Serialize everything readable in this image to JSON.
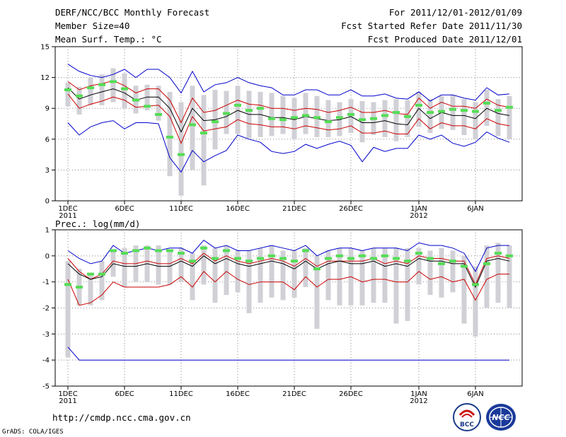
{
  "header": {
    "left": [
      "DERF/NCC/BCC Monthly Forecast",
      "Member Size=40",
      "Mean Surf. Temp.: °C"
    ],
    "right": [
      "For 2011/12/01-2012/01/09",
      "Fcst Started Refer Date 2011/11/30",
      "Fcst Produced Date 2011/12/01"
    ]
  },
  "footer": {
    "url": "http://cmdp.ncc.cma.gov.cn",
    "credit": "GrADS: COLA/IGES",
    "logo_bcc_text": "BCC",
    "logo_ncc_text": "NCC"
  },
  "colors": {
    "max_min": "#0000cc",
    "spread": "#cc0000",
    "mean": "#000000",
    "ensemble_bar": "#d0d0d6",
    "control": "#55dd55",
    "grid": "#888888"
  },
  "chart_data": [
    {
      "type": "line",
      "title": "Mean Surf. Temp.: °C",
      "x": "day index 0 = 2011/12/01 ... 39 = 2012/01/09",
      "xticks": [
        {
          "day": 0,
          "label": [
            "1DEC",
            "2011"
          ]
        },
        {
          "day": 5,
          "label": [
            "6DEC"
          ]
        },
        {
          "day": 10,
          "label": [
            "11DEC"
          ]
        },
        {
          "day": 15,
          "label": [
            "16DEC"
          ]
        },
        {
          "day": 20,
          "label": [
            "21DEC"
          ]
        },
        {
          "day": 25,
          "label": [
            "26DEC"
          ]
        },
        {
          "day": 31,
          "label": [
            "1JAN",
            "2012"
          ]
        },
        {
          "day": 36,
          "label": [
            "6JAN"
          ]
        }
      ],
      "ylim": [
        0,
        15
      ],
      "yticks": [
        0,
        3,
        6,
        9,
        12,
        15
      ],
      "series": [
        {
          "name": "max",
          "values": [
            13.3,
            12.6,
            12.2,
            12.0,
            12.3,
            12.8,
            12.0,
            12.8,
            12.8,
            12.0,
            10.5,
            12.6,
            10.6,
            11.3,
            11.5,
            12.0,
            11.5,
            11.2,
            11.0,
            10.3,
            10.3,
            10.8,
            10.8,
            10.3,
            10.3,
            10.8,
            10.2,
            10.2,
            10.4,
            10.0,
            9.9,
            10.6,
            9.7,
            10.3,
            10.3,
            10.0,
            9.8,
            11.0,
            10.3,
            10.4
          ]
        },
        {
          "name": "spread_upper",
          "values": [
            11.6,
            10.8,
            11.2,
            11.4,
            11.7,
            11.2,
            10.5,
            10.9,
            10.9,
            9.8,
            7.6,
            10.0,
            8.6,
            8.8,
            9.3,
            9.8,
            9.4,
            9.3,
            9.0,
            9.0,
            8.8,
            9.0,
            8.9,
            8.6,
            8.8,
            9.1,
            8.6,
            8.6,
            8.8,
            8.5,
            8.4,
            10.0,
            9.0,
            9.6,
            9.2,
            9.2,
            9.0,
            9.9,
            9.3,
            9.1
          ]
        },
        {
          "name": "mean",
          "values": [
            11.0,
            9.9,
            10.3,
            10.6,
            10.9,
            10.5,
            9.8,
            10.1,
            10.1,
            9.0,
            6.7,
            9.0,
            7.8,
            7.9,
            8.2,
            8.8,
            8.4,
            8.4,
            8.1,
            8.1,
            7.9,
            8.2,
            8.0,
            7.8,
            7.9,
            8.2,
            7.6,
            7.6,
            7.8,
            7.5,
            7.4,
            9.0,
            8.0,
            8.6,
            8.3,
            8.3,
            8.0,
            9.0,
            8.5,
            8.3
          ]
        },
        {
          "name": "spread_lower",
          "values": [
            10.4,
            9.0,
            9.4,
            9.7,
            10.1,
            9.8,
            9.1,
            9.2,
            9.3,
            8.2,
            5.6,
            8.2,
            6.8,
            7.0,
            7.2,
            7.9,
            7.5,
            7.4,
            7.2,
            7.2,
            7.0,
            7.3,
            7.1,
            6.9,
            7.0,
            7.3,
            6.6,
            6.6,
            6.8,
            6.5,
            6.5,
            8.0,
            7.0,
            7.6,
            7.3,
            7.3,
            7.0,
            8.0,
            7.5,
            7.3
          ]
        },
        {
          "name": "min",
          "values": [
            7.6,
            6.4,
            7.2,
            7.6,
            7.8,
            7.0,
            7.6,
            7.6,
            7.5,
            4.2,
            2.8,
            4.9,
            3.8,
            4.4,
            4.9,
            6.4,
            6.0,
            5.7,
            4.8,
            4.6,
            4.8,
            5.5,
            5.1,
            5.5,
            5.8,
            5.4,
            3.8,
            5.2,
            4.8,
            5.1,
            5.1,
            6.4,
            6.0,
            6.4,
            5.6,
            5.3,
            5.7,
            6.7,
            6.1,
            5.7
          ]
        },
        {
          "name": "control",
          "values": [
            10.8,
            10.2,
            11.0,
            11.3,
            11.6,
            10.9,
            9.8,
            9.2,
            8.4,
            6.2,
            4.5,
            7.4,
            6.6,
            7.7,
            8.5,
            9.3,
            8.8,
            9.0,
            8.0,
            7.9,
            8.1,
            8.3,
            8.1,
            7.7,
            8.1,
            8.4,
            7.9,
            8.0,
            8.3,
            8.6,
            8.2,
            9.3,
            8.6,
            8.7,
            8.9,
            8.8,
            8.7,
            9.5,
            8.8,
            9.1
          ]
        },
        {
          "name": "ensemble_bar_high",
          "values": [
            11.5,
            11.1,
            12.0,
            12.3,
            12.9,
            12.4,
            11.2,
            11.3,
            11.2,
            10.6,
            9.6,
            11.2,
            10.3,
            10.8,
            10.7,
            11.2,
            10.7,
            10.6,
            10.5,
            10.2,
            10.0,
            10.5,
            10.2,
            9.8,
            9.6,
            9.9,
            9.7,
            9.6,
            9.8,
            9.9,
            9.8,
            10.6,
            9.9,
            10.2,
            10.3,
            9.9,
            9.6,
            10.8,
            9.9,
            10.2
          ]
        },
        {
          "name": "ensemble_bar_low",
          "values": [
            9.2,
            8.4,
            9.3,
            9.3,
            9.6,
            9.0,
            8.5,
            8.8,
            7.8,
            2.4,
            0.5,
            3.0,
            1.5,
            5.0,
            6.5,
            6.5,
            6.1,
            6.2,
            6.3,
            6.5,
            6.0,
            6.5,
            6.2,
            6.2,
            6.3,
            6.6,
            5.7,
            6.4,
            6.2,
            5.8,
            6.2,
            7.2,
            6.6,
            7.0,
            6.9,
            6.4,
            6.0,
            7.3,
            6.3,
            6.0
          ]
        }
      ]
    },
    {
      "type": "line",
      "title": "Prec.: log(mm/d)",
      "x": "day index 0 = 2011/12/01 ... 39 = 2012/01/09",
      "xticks": [
        {
          "day": 0,
          "label": [
            "1DEC",
            "2011"
          ]
        },
        {
          "day": 5,
          "label": [
            "6DEC"
          ]
        },
        {
          "day": 10,
          "label": [
            "11DEC"
          ]
        },
        {
          "day": 15,
          "label": [
            "16DEC"
          ]
        },
        {
          "day": 20,
          "label": [
            "21DEC"
          ]
        },
        {
          "day": 25,
          "label": [
            "26DEC"
          ]
        },
        {
          "day": 31,
          "label": [
            "1JAN",
            "2012"
          ]
        },
        {
          "day": 36,
          "label": [
            "6JAN"
          ]
        }
      ],
      "ylim": [
        -5,
        1
      ],
      "yticks": [
        -5,
        -4,
        -3,
        -2,
        -1,
        0,
        1
      ],
      "series": [
        {
          "name": "max",
          "values": [
            0.2,
            -0.1,
            -0.3,
            -0.2,
            0.4,
            0.1,
            0.2,
            0.3,
            0.2,
            0.3,
            0.3,
            0.1,
            0.6,
            0.3,
            0.4,
            0.2,
            0.2,
            0.3,
            0.4,
            0.3,
            0.2,
            0.4,
            0.0,
            0.2,
            0.3,
            0.3,
            0.2,
            0.3,
            0.3,
            0.3,
            0.2,
            0.5,
            0.4,
            0.4,
            0.3,
            0.1,
            -0.6,
            0.3,
            0.4,
            0.4
          ]
        },
        {
          "name": "spread_upper",
          "values": [
            -0.1,
            -0.6,
            -0.9,
            -0.7,
            -0.2,
            -0.3,
            -0.3,
            -0.2,
            -0.3,
            -0.3,
            -0.1,
            -0.3,
            0.1,
            -0.2,
            0.0,
            -0.2,
            -0.3,
            -0.2,
            -0.1,
            -0.2,
            -0.4,
            -0.1,
            -0.4,
            -0.2,
            -0.2,
            -0.2,
            -0.2,
            -0.1,
            -0.3,
            -0.2,
            -0.3,
            0.0,
            -0.1,
            -0.1,
            -0.2,
            -0.2,
            -1.1,
            -0.1,
            0.0,
            -0.1
          ]
        },
        {
          "name": "mean",
          "values": [
            -0.3,
            -0.7,
            -0.9,
            -0.8,
            -0.3,
            -0.4,
            -0.4,
            -0.3,
            -0.4,
            -0.4,
            -0.2,
            -0.4,
            0.0,
            -0.3,
            -0.1,
            -0.3,
            -0.4,
            -0.3,
            -0.2,
            -0.3,
            -0.5,
            -0.2,
            -0.5,
            -0.3,
            -0.2,
            -0.3,
            -0.3,
            -0.2,
            -0.4,
            -0.3,
            -0.4,
            -0.1,
            -0.2,
            -0.2,
            -0.3,
            -0.3,
            -1.2,
            -0.2,
            -0.1,
            -0.2
          ]
        },
        {
          "name": "spread_lower",
          "values": [
            -0.9,
            -1.9,
            -1.8,
            -1.5,
            -1.0,
            -1.2,
            -1.2,
            -1.2,
            -1.2,
            -1.1,
            -0.8,
            -1.2,
            -0.6,
            -1.0,
            -0.6,
            -0.9,
            -1.1,
            -1.0,
            -1.0,
            -1.0,
            -1.3,
            -0.8,
            -1.2,
            -0.9,
            -0.9,
            -0.8,
            -1.0,
            -0.9,
            -0.9,
            -1.0,
            -1.0,
            -0.6,
            -0.9,
            -0.8,
            -1.0,
            -0.9,
            -1.7,
            -0.9,
            -0.7,
            -0.7
          ]
        },
        {
          "name": "min",
          "values": [
            -3.5,
            -4.0,
            -4.0,
            -4.0,
            -4.0,
            -4.0,
            -4.0,
            -4.0,
            -4.0,
            -4.0,
            -4.0,
            -4.0,
            -4.0,
            -4.0,
            -4.0,
            -4.0,
            -4.0,
            -4.0,
            -4.0,
            -4.0,
            -4.0,
            -4.0,
            -4.0,
            -4.0,
            -4.0,
            -4.0,
            -4.0,
            -4.0,
            -4.0,
            -4.0,
            -4.0,
            -4.0,
            -4.0,
            -4.0,
            -4.0,
            -4.0,
            -4.0,
            -4.0,
            -4.0,
            -4.0
          ]
        },
        {
          "name": "control",
          "values": [
            -1.1,
            -1.2,
            -0.7,
            -0.7,
            0.2,
            0.1,
            0.2,
            0.3,
            0.2,
            0.2,
            0.1,
            -0.2,
            0.3,
            -0.1,
            0.2,
            -0.1,
            -0.2,
            -0.1,
            0.0,
            -0.1,
            -0.2,
            0.2,
            -0.5,
            -0.1,
            0.0,
            -0.1,
            0.0,
            -0.1,
            0.0,
            -0.1,
            -0.2,
            0.1,
            -0.1,
            -0.3,
            -0.2,
            -0.4,
            -1.1,
            -0.3,
            0.1,
            0.0
          ]
        },
        {
          "name": "ensemble_bar_high",
          "values": [
            -0.2,
            -0.5,
            -0.7,
            -0.2,
            0.2,
            0.3,
            0.4,
            0.4,
            0.4,
            0.2,
            0.3,
            0.1,
            0.4,
            0.3,
            0.4,
            0.2,
            0.2,
            0.3,
            0.4,
            0.2,
            0.2,
            0.3,
            0.0,
            0.2,
            0.3,
            0.3,
            0.2,
            0.3,
            0.3,
            0.3,
            0.3,
            0.3,
            0.2,
            0.3,
            0.2,
            0.0,
            -0.4,
            0.4,
            0.5,
            0.4
          ]
        },
        {
          "name": "ensemble_bar_low",
          "values": [
            -3.9,
            -1.9,
            -1.9,
            -1.7,
            -0.8,
            -1.2,
            -1.0,
            -1.0,
            -1.1,
            -1.1,
            -1.0,
            -1.7,
            -1.1,
            -1.8,
            -1.5,
            -1.4,
            -2.2,
            -1.8,
            -1.6,
            -1.7,
            -1.6,
            -1.2,
            -2.8,
            -1.7,
            -1.9,
            -1.9,
            -1.9,
            -1.8,
            -1.8,
            -2.6,
            -2.5,
            -1.1,
            -1.5,
            -1.6,
            -1.4,
            -2.6,
            -3.1,
            -2.0,
            -1.8,
            -2.0
          ]
        }
      ]
    }
  ]
}
